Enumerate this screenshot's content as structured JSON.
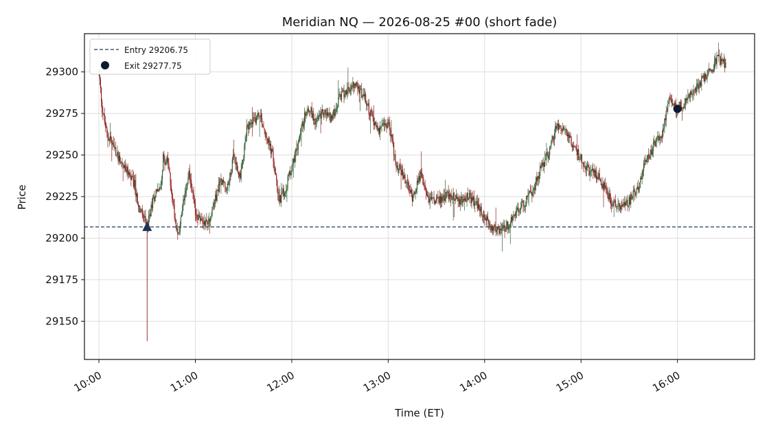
{
  "chart_data": {
    "type": "candlestick",
    "title": "Meridian NQ — 2026-08-25 #00  (short fade)",
    "xlabel": "Time (ET)",
    "ylabel": "Price",
    "x_range": [
      "09:51",
      "16:48"
    ],
    "ylim": [
      29127,
      29323
    ],
    "x_ticks": [
      "10:00",
      "11:00",
      "12:00",
      "13:00",
      "14:00",
      "15:00",
      "16:00"
    ],
    "y_ticks": [
      29150,
      29175,
      29200,
      29225,
      29250,
      29275,
      29300
    ],
    "grid": true,
    "legend_position": "top-left",
    "entry": {
      "label": "Entry 29206.75",
      "time": "10:30",
      "price": 29206.75
    },
    "exit": {
      "label": "Exit 29277.75",
      "time": "16:00",
      "price": 29277.75
    },
    "price_path": [
      {
        "t": "10:00",
        "p": 29300
      },
      {
        "t": "10:02",
        "p": 29278
      },
      {
        "t": "10:05",
        "p": 29262
      },
      {
        "t": "10:08",
        "p": 29258
      },
      {
        "t": "10:10",
        "p": 29252
      },
      {
        "t": "10:13",
        "p": 29248
      },
      {
        "t": "10:16",
        "p": 29242
      },
      {
        "t": "10:19",
        "p": 29238
      },
      {
        "t": "10:22",
        "p": 29232
      },
      {
        "t": "10:25",
        "p": 29218
      },
      {
        "t": "10:28",
        "p": 29212
      },
      {
        "t": "10:30",
        "p": 29206
      },
      {
        "t": "10:33",
        "p": 29220
      },
      {
        "t": "10:36",
        "p": 29230
      },
      {
        "t": "10:38",
        "p": 29228
      },
      {
        "t": "10:40",
        "p": 29248
      },
      {
        "t": "10:43",
        "p": 29245
      },
      {
        "t": "10:46",
        "p": 29222
      },
      {
        "t": "10:48",
        "p": 29208
      },
      {
        "t": "10:50",
        "p": 29203
      },
      {
        "t": "10:53",
        "p": 29225
      },
      {
        "t": "10:56",
        "p": 29240
      },
      {
        "t": "10:58",
        "p": 29228
      },
      {
        "t": "11:00",
        "p": 29215
      },
      {
        "t": "11:04",
        "p": 29210
      },
      {
        "t": "11:08",
        "p": 29210
      },
      {
        "t": "11:12",
        "p": 29222
      },
      {
        "t": "11:16",
        "p": 29235
      },
      {
        "t": "11:20",
        "p": 29230
      },
      {
        "t": "11:24",
        "p": 29250
      },
      {
        "t": "11:28",
        "p": 29235
      },
      {
        "t": "11:32",
        "p": 29265
      },
      {
        "t": "11:36",
        "p": 29270
      },
      {
        "t": "11:40",
        "p": 29275
      },
      {
        "t": "11:44",
        "p": 29262
      },
      {
        "t": "11:48",
        "p": 29250
      },
      {
        "t": "11:52",
        "p": 29222
      },
      {
        "t": "11:56",
        "p": 29230
      },
      {
        "t": "12:00",
        "p": 29242
      },
      {
        "t": "12:05",
        "p": 29262
      },
      {
        "t": "12:10",
        "p": 29280
      },
      {
        "t": "12:15",
        "p": 29270
      },
      {
        "t": "12:20",
        "p": 29276
      },
      {
        "t": "12:25",
        "p": 29272
      },
      {
        "t": "12:30",
        "p": 29285
      },
      {
        "t": "12:35",
        "p": 29290
      },
      {
        "t": "12:40",
        "p": 29292
      },
      {
        "t": "12:45",
        "p": 29285
      },
      {
        "t": "12:50",
        "p": 29272
      },
      {
        "t": "12:55",
        "p": 29265
      },
      {
        "t": "13:00",
        "p": 29270
      },
      {
        "t": "13:05",
        "p": 29245
      },
      {
        "t": "13:10",
        "p": 29236
      },
      {
        "t": "13:15",
        "p": 29225
      },
      {
        "t": "13:20",
        "p": 29238
      },
      {
        "t": "13:25",
        "p": 29224
      },
      {
        "t": "13:30",
        "p": 29222
      },
      {
        "t": "13:35",
        "p": 29225
      },
      {
        "t": "13:40",
        "p": 29226
      },
      {
        "t": "13:45",
        "p": 29222
      },
      {
        "t": "13:50",
        "p": 29225
      },
      {
        "t": "13:55",
        "p": 29220
      },
      {
        "t": "14:00",
        "p": 29212
      },
      {
        "t": "14:05",
        "p": 29206
      },
      {
        "t": "14:10",
        "p": 29205
      },
      {
        "t": "14:15",
        "p": 29208
      },
      {
        "t": "14:20",
        "p": 29215
      },
      {
        "t": "14:25",
        "p": 29222
      },
      {
        "t": "14:30",
        "p": 29228
      },
      {
        "t": "14:35",
        "p": 29242
      },
      {
        "t": "14:40",
        "p": 29252
      },
      {
        "t": "14:45",
        "p": 29268
      },
      {
        "t": "14:50",
        "p": 29265
      },
      {
        "t": "14:55",
        "p": 29255
      },
      {
        "t": "15:00",
        "p": 29248
      },
      {
        "t": "15:05",
        "p": 29240
      },
      {
        "t": "15:10",
        "p": 29238
      },
      {
        "t": "15:15",
        "p": 29230
      },
      {
        "t": "15:20",
        "p": 29220
      },
      {
        "t": "15:25",
        "p": 29220
      },
      {
        "t": "15:30",
        "p": 29222
      },
      {
        "t": "15:35",
        "p": 29230
      },
      {
        "t": "15:40",
        "p": 29245
      },
      {
        "t": "15:45",
        "p": 29255
      },
      {
        "t": "15:50",
        "p": 29262
      },
      {
        "t": "15:55",
        "p": 29282
      },
      {
        "t": "16:00",
        "p": 29278
      },
      {
        "t": "16:05",
        "p": 29282
      },
      {
        "t": "16:10",
        "p": 29288
      },
      {
        "t": "16:15",
        "p": 29295
      },
      {
        "t": "16:20",
        "p": 29300
      },
      {
        "t": "16:25",
        "p": 29308
      },
      {
        "t": "16:30",
        "p": 29305
      }
    ],
    "low_wick": {
      "t": "10:30",
      "p": 29138
    },
    "up_color": "#2f5e34",
    "down_color": "#8c1e1e",
    "entry_color": "#1d3556",
    "exit_color": "#0e1a2e"
  }
}
